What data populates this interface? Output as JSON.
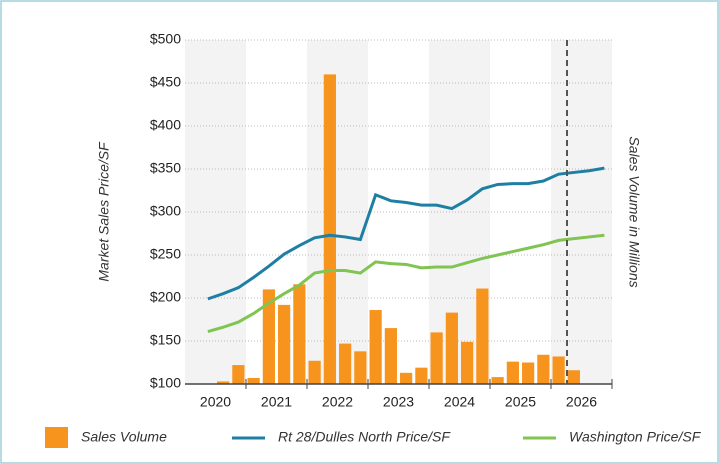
{
  "chart_data": {
    "type": "bar_line",
    "y_label": "Market Sales Price/SF",
    "y2_label": "Sales Volume in Millions",
    "xlim": [
      2019.5,
      2026.5
    ],
    "xticks": [
      2020,
      2021,
      2022,
      2023,
      2024,
      2025,
      2026
    ],
    "ylim": [
      100,
      500
    ],
    "yticks": [
      {
        "value": 100,
        "label": "$100"
      },
      {
        "value": 150,
        "label": "$150"
      },
      {
        "value": 200,
        "label": "$200"
      },
      {
        "value": 250,
        "label": "$250"
      },
      {
        "value": 300,
        "label": "$300"
      },
      {
        "value": 350,
        "label": "$350"
      },
      {
        "value": 400,
        "label": "$400"
      },
      {
        "value": 450,
        "label": "$450"
      },
      {
        "value": 500,
        "label": "$500"
      }
    ],
    "grid": true,
    "series": [
      {
        "name": "Sales Volume",
        "kind": "bar",
        "color": "#f7941d",
        "x": [
          2020.125,
          2020.375,
          2020.625,
          2020.875,
          2021.125,
          2021.375,
          2021.625,
          2021.875,
          2022.125,
          2022.375,
          2022.625,
          2022.875,
          2023.125,
          2023.375,
          2023.625,
          2023.875,
          2024.125,
          2024.375,
          2024.625,
          2024.875,
          2025.125,
          2025.375,
          2025.625,
          2025.875
        ],
        "values": [
          103,
          122,
          107,
          210,
          192,
          216,
          127,
          460,
          147,
          138,
          186,
          165,
          113,
          119,
          160,
          183,
          149,
          211,
          108,
          126,
          125,
          134,
          132,
          116
        ]
      },
      {
        "name": "Rt 28/Dulles North Price/SF",
        "kind": "line",
        "color": "#1f7fa3",
        "x": [
          2019.875,
          2020.125,
          2020.375,
          2020.625,
          2020.875,
          2021.125,
          2021.375,
          2021.625,
          2021.875,
          2022.125,
          2022.375,
          2022.625,
          2022.875,
          2023.125,
          2023.375,
          2023.625,
          2023.875,
          2024.125,
          2024.375,
          2024.625,
          2024.875,
          2025.125,
          2025.375,
          2025.625,
          2025.875,
          2026.125,
          2026.375
        ],
        "values": [
          199,
          205,
          212,
          224,
          237,
          251,
          261,
          270,
          273,
          271,
          268,
          320,
          313,
          311,
          308,
          308,
          304,
          314,
          327,
          332,
          333,
          333,
          336,
          344,
          346,
          348,
          351
        ]
      },
      {
        "name": "Washington Price/SF",
        "kind": "line",
        "color": "#80c451",
        "x": [
          2019.875,
          2020.125,
          2020.375,
          2020.625,
          2020.875,
          2021.125,
          2021.375,
          2021.625,
          2021.875,
          2022.125,
          2022.375,
          2022.625,
          2022.875,
          2023.125,
          2023.375,
          2023.625,
          2023.875,
          2024.125,
          2024.375,
          2024.625,
          2024.875,
          2025.125,
          2025.375,
          2025.625,
          2025.875,
          2026.125,
          2026.375
        ],
        "values": [
          161,
          166,
          172,
          182,
          194,
          205,
          215,
          229,
          232,
          232,
          229,
          242,
          240,
          239,
          235,
          236,
          236,
          241,
          246,
          250,
          254,
          258,
          262,
          267,
          269,
          271,
          273
        ]
      }
    ]
  }
}
